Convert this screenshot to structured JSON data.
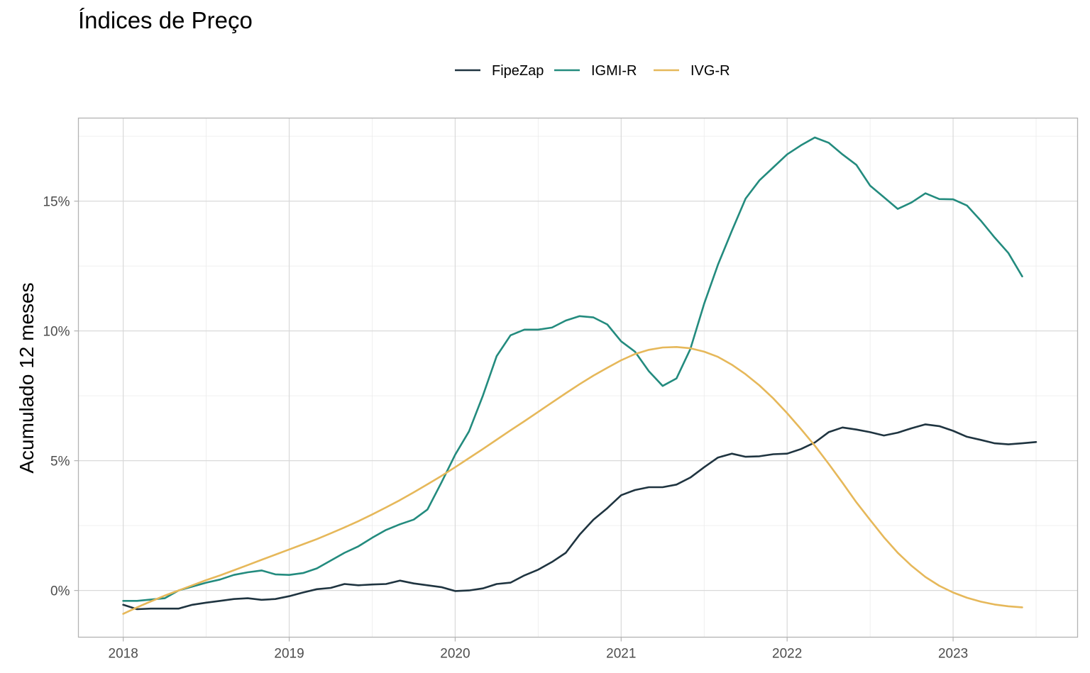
{
  "chart_data": {
    "type": "line",
    "title": "Índices de Preço",
    "xlabel": "",
    "ylabel": "Acumulado 12 meses",
    "x_ticks": [
      "2018",
      "2019",
      "2020",
      "2021",
      "2022",
      "2023"
    ],
    "y_ticks": [
      "0%",
      "5%",
      "10%",
      "15%"
    ],
    "xlim": [
      2017.73,
      2023.75
    ],
    "ylim": [
      -1.8,
      18.2
    ],
    "grid": true,
    "legend_position": "top",
    "start": "2018-01",
    "series": [
      {
        "name": "FipeZap",
        "color": "#1f3440",
        "values": [
          -0.55,
          -0.72,
          -0.7,
          -0.7,
          -0.7,
          -0.55,
          -0.47,
          -0.4,
          -0.33,
          -0.3,
          -0.36,
          -0.33,
          -0.22,
          -0.08,
          0.05,
          0.1,
          0.25,
          0.2,
          0.23,
          0.25,
          0.38,
          0.27,
          0.2,
          0.13,
          -0.02,
          0.0,
          0.08,
          0.25,
          0.3,
          0.58,
          0.8,
          1.1,
          1.45,
          2.15,
          2.73,
          3.17,
          3.67,
          3.87,
          3.98,
          3.98,
          4.08,
          4.35,
          4.75,
          5.12,
          5.27,
          5.15,
          5.17,
          5.25,
          5.27,
          5.45,
          5.7,
          6.1,
          6.28,
          6.2,
          6.1,
          5.97,
          6.08,
          6.25,
          6.4,
          6.33,
          6.15,
          5.92,
          5.8,
          5.67,
          5.63,
          5.67,
          5.72
        ]
      },
      {
        "name": "IGMI-R",
        "color": "#238b7e",
        "values": [
          -0.4,
          -0.4,
          -0.35,
          -0.3,
          0.0,
          0.15,
          0.3,
          0.42,
          0.6,
          0.7,
          0.77,
          0.62,
          0.6,
          0.67,
          0.85,
          1.15,
          1.45,
          1.7,
          2.03,
          2.33,
          2.55,
          2.73,
          3.12,
          4.15,
          5.23,
          6.13,
          7.5,
          9.03,
          9.83,
          10.05,
          10.05,
          10.13,
          10.4,
          10.57,
          10.52,
          10.25,
          9.6,
          9.2,
          8.45,
          7.88,
          8.17,
          9.3,
          11.05,
          12.55,
          13.85,
          15.1,
          15.8,
          16.3,
          16.8,
          17.15,
          17.45,
          17.25,
          16.8,
          16.4,
          15.6,
          15.15,
          14.7,
          14.95,
          15.3,
          15.08,
          15.07,
          14.83,
          14.25,
          13.6,
          13.0,
          12.1
        ]
      },
      {
        "name": "IVG-R",
        "color": "#e6b85a",
        "values": [
          -0.9,
          -0.65,
          -0.42,
          -0.2,
          0.0,
          0.2,
          0.4,
          0.58,
          0.78,
          0.98,
          1.18,
          1.38,
          1.58,
          1.78,
          1.98,
          2.2,
          2.43,
          2.67,
          2.93,
          3.2,
          3.48,
          3.78,
          4.09,
          4.41,
          4.75,
          5.1,
          5.45,
          5.81,
          6.17,
          6.52,
          6.88,
          7.24,
          7.6,
          7.95,
          8.28,
          8.58,
          8.87,
          9.11,
          9.27,
          9.36,
          9.38,
          9.33,
          9.2,
          9.0,
          8.7,
          8.33,
          7.9,
          7.4,
          6.83,
          6.22,
          5.58,
          4.88,
          4.15,
          3.4,
          2.72,
          2.05,
          1.45,
          0.95,
          0.52,
          0.18,
          -0.08,
          -0.28,
          -0.43,
          -0.54,
          -0.61,
          -0.65
        ]
      }
    ]
  }
}
